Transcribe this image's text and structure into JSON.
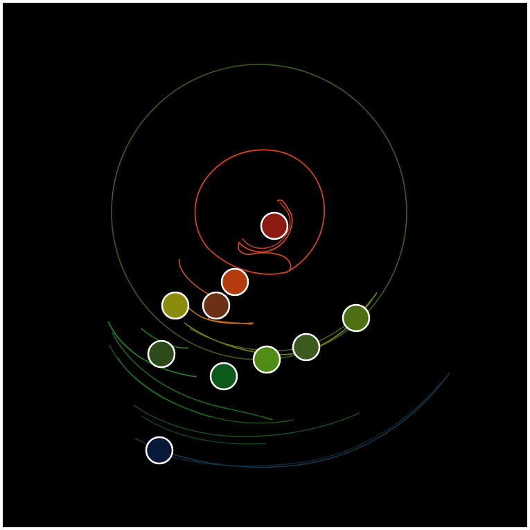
{
  "canvas": {
    "background": "#000000",
    "frame_color": "#ffffff"
  },
  "bodies": [
    {
      "id": "body-1",
      "color": "#8c1a10"
    },
    {
      "id": "body-2",
      "color": "#b43c0c"
    },
    {
      "id": "body-3",
      "color": "#6b3114"
    },
    {
      "id": "body-4",
      "color": "#8a8a0c"
    },
    {
      "id": "body-5",
      "color": "#4c7012"
    },
    {
      "id": "body-6",
      "color": "#2d4a1a"
    },
    {
      "id": "body-7",
      "color": "#3a5a1e"
    },
    {
      "id": "body-8",
      "color": "#4f8c14"
    },
    {
      "id": "body-9",
      "color": "#0c5a1a"
    },
    {
      "id": "body-10",
      "color": "#081838"
    }
  ],
  "trail_colors": {
    "orange": "#d2461c",
    "olive": "#3e5e1a",
    "yellow_green": "#7a8a12",
    "amber": "#c87814",
    "green": "#1e8c28",
    "teal_blue": "#123c52"
  }
}
